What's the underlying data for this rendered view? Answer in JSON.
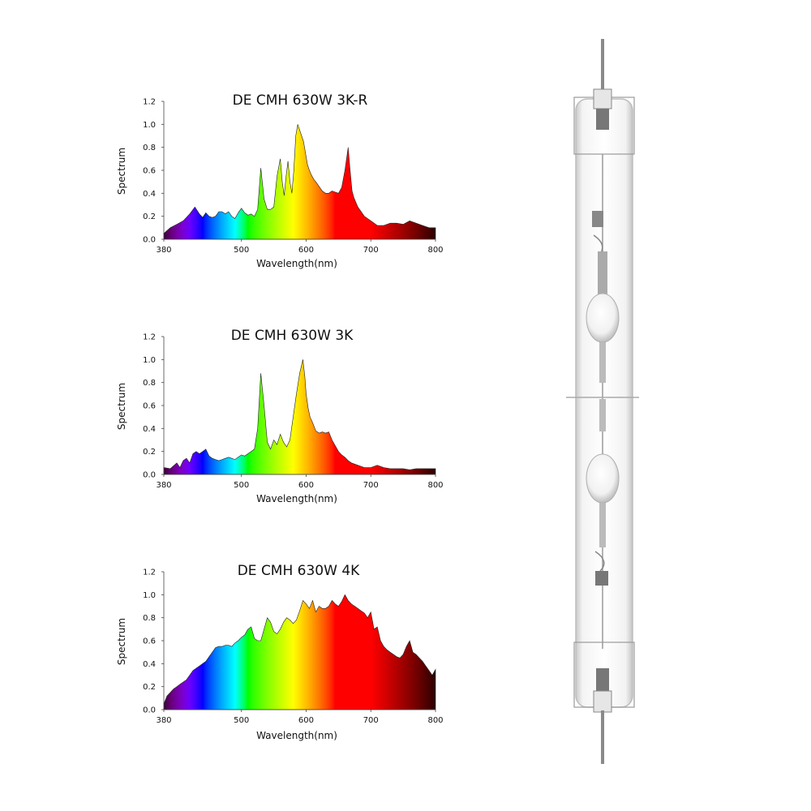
{
  "chart_data": [
    {
      "type": "area",
      "title": "DE CMH 630W 3K-R",
      "xlabel": "Wavelength(nm)",
      "ylabel": "Spectrum",
      "xlim": [
        380,
        800
      ],
      "ylim": [
        0,
        1.2
      ],
      "xticks": [
        380,
        500,
        600,
        700,
        800
      ],
      "yticks": [
        0.0,
        0.2,
        0.4,
        0.6,
        0.8,
        1.0,
        1.2
      ],
      "fill": "wavelength-color gradient",
      "x": [
        380,
        390,
        400,
        410,
        420,
        428,
        435,
        440,
        445,
        450,
        455,
        460,
        465,
        470,
        475,
        480,
        485,
        490,
        495,
        500,
        505,
        510,
        515,
        520,
        525,
        530,
        535,
        540,
        545,
        550,
        555,
        560,
        563,
        566,
        569,
        572,
        575,
        578,
        581,
        584,
        587,
        590,
        593,
        596,
        599,
        602,
        605,
        608,
        612,
        615,
        620,
        625,
        630,
        635,
        640,
        645,
        650,
        655,
        660,
        665,
        668,
        671,
        674,
        677,
        680,
        690,
        700,
        710,
        720,
        730,
        740,
        750,
        760,
        770,
        780,
        790,
        800
      ],
      "y": [
        0.05,
        0.1,
        0.13,
        0.16,
        0.22,
        0.28,
        0.22,
        0.19,
        0.23,
        0.2,
        0.19,
        0.2,
        0.24,
        0.24,
        0.22,
        0.24,
        0.2,
        0.18,
        0.23,
        0.27,
        0.23,
        0.21,
        0.22,
        0.2,
        0.26,
        0.62,
        0.35,
        0.26,
        0.26,
        0.28,
        0.55,
        0.7,
        0.5,
        0.38,
        0.55,
        0.68,
        0.5,
        0.4,
        0.6,
        0.9,
        1.0,
        0.95,
        0.9,
        0.85,
        0.75,
        0.65,
        0.6,
        0.56,
        0.52,
        0.5,
        0.46,
        0.42,
        0.4,
        0.4,
        0.42,
        0.41,
        0.4,
        0.45,
        0.6,
        0.8,
        0.6,
        0.42,
        0.36,
        0.32,
        0.28,
        0.2,
        0.16,
        0.12,
        0.12,
        0.14,
        0.14,
        0.13,
        0.16,
        0.14,
        0.12,
        0.1,
        0.1
      ]
    },
    {
      "type": "area",
      "title": "DE CMH 630W 3K",
      "xlabel": "Wavelength(nm)",
      "ylabel": "Spectrum",
      "xlim": [
        380,
        800
      ],
      "ylim": [
        0,
        1.2
      ],
      "xticks": [
        380,
        500,
        600,
        700,
        800
      ],
      "yticks": [
        0.0,
        0.2,
        0.4,
        0.6,
        0.8,
        1.0,
        1.2
      ],
      "fill": "wavelength-color gradient",
      "x": [
        380,
        390,
        400,
        405,
        410,
        415,
        420,
        425,
        430,
        435,
        440,
        445,
        450,
        455,
        460,
        465,
        470,
        475,
        480,
        485,
        490,
        495,
        500,
        505,
        510,
        515,
        520,
        525,
        530,
        535,
        540,
        545,
        550,
        555,
        560,
        565,
        570,
        575,
        580,
        585,
        590,
        595,
        598,
        600,
        603,
        606,
        610,
        615,
        620,
        625,
        630,
        635,
        640,
        645,
        650,
        655,
        660,
        665,
        670,
        680,
        690,
        700,
        710,
        720,
        730,
        740,
        750,
        760,
        770,
        780,
        790,
        800
      ],
      "y": [
        0.06,
        0.05,
        0.1,
        0.06,
        0.12,
        0.14,
        0.1,
        0.18,
        0.2,
        0.18,
        0.2,
        0.22,
        0.16,
        0.14,
        0.13,
        0.12,
        0.13,
        0.14,
        0.15,
        0.14,
        0.13,
        0.15,
        0.17,
        0.16,
        0.18,
        0.2,
        0.22,
        0.4,
        0.88,
        0.6,
        0.28,
        0.22,
        0.3,
        0.26,
        0.35,
        0.28,
        0.24,
        0.3,
        0.5,
        0.7,
        0.88,
        1.0,
        0.85,
        0.7,
        0.58,
        0.5,
        0.45,
        0.38,
        0.36,
        0.37,
        0.36,
        0.37,
        0.3,
        0.25,
        0.2,
        0.17,
        0.15,
        0.12,
        0.1,
        0.08,
        0.06,
        0.06,
        0.08,
        0.06,
        0.05,
        0.05,
        0.05,
        0.04,
        0.05,
        0.05,
        0.05,
        0.05
      ]
    },
    {
      "type": "area",
      "title": "DE CMH 630W 4K",
      "xlabel": "Wavelength(nm)",
      "ylabel": "Spectrum",
      "xlim": [
        380,
        800
      ],
      "ylim": [
        0,
        1.2
      ],
      "xticks": [
        380,
        500,
        600,
        700,
        800
      ],
      "yticks": [
        0.0,
        0.2,
        0.4,
        0.6,
        0.8,
        1.0,
        1.2
      ],
      "fill": "wavelength-color gradient",
      "x": [
        380,
        385,
        390,
        395,
        400,
        405,
        410,
        415,
        420,
        425,
        430,
        435,
        440,
        445,
        450,
        455,
        460,
        465,
        470,
        475,
        480,
        485,
        490,
        495,
        500,
        505,
        510,
        515,
        520,
        525,
        530,
        535,
        540,
        545,
        550,
        555,
        560,
        565,
        570,
        575,
        580,
        585,
        590,
        595,
        600,
        605,
        610,
        615,
        620,
        625,
        630,
        635,
        640,
        645,
        650,
        655,
        660,
        665,
        670,
        675,
        680,
        685,
        690,
        695,
        700,
        705,
        710,
        715,
        720,
        725,
        730,
        735,
        740,
        745,
        750,
        755,
        760,
        765,
        770,
        775,
        780,
        785,
        790,
        795,
        800
      ],
      "y": [
        0.05,
        0.12,
        0.15,
        0.18,
        0.2,
        0.22,
        0.24,
        0.26,
        0.3,
        0.34,
        0.36,
        0.38,
        0.4,
        0.42,
        0.46,
        0.5,
        0.54,
        0.55,
        0.55,
        0.56,
        0.56,
        0.55,
        0.58,
        0.6,
        0.63,
        0.65,
        0.7,
        0.72,
        0.62,
        0.6,
        0.6,
        0.7,
        0.8,
        0.76,
        0.68,
        0.66,
        0.7,
        0.76,
        0.8,
        0.78,
        0.75,
        0.78,
        0.86,
        0.95,
        0.92,
        0.88,
        0.95,
        0.85,
        0.9,
        0.88,
        0.88,
        0.9,
        0.95,
        0.92,
        0.9,
        0.94,
        1.0,
        0.95,
        0.92,
        0.9,
        0.88,
        0.86,
        0.84,
        0.8,
        0.85,
        0.7,
        0.72,
        0.6,
        0.55,
        0.52,
        0.5,
        0.48,
        0.46,
        0.45,
        0.48,
        0.55,
        0.6,
        0.5,
        0.48,
        0.45,
        0.42,
        0.38,
        0.34,
        0.3,
        0.35
      ]
    }
  ]
}
